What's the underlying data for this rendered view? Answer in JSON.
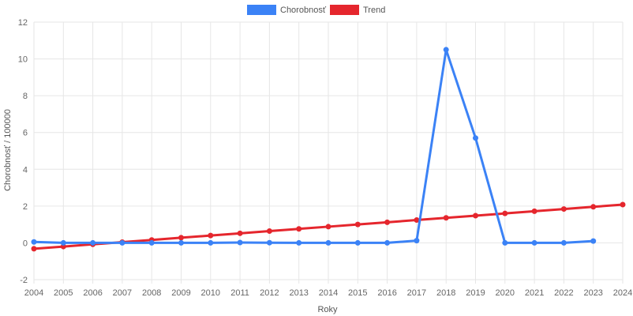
{
  "chart_data": {
    "type": "line",
    "xlabel": "Roky",
    "ylabel": "Chorobnosť / 100000",
    "ylim": [
      -2,
      12
    ],
    "yticks": [
      -2,
      0,
      2,
      4,
      6,
      8,
      10,
      12
    ],
    "categories": [
      "2004",
      "2005",
      "2006",
      "2007",
      "2008",
      "2009",
      "2010",
      "2011",
      "2012",
      "2013",
      "2014",
      "2015",
      "2016",
      "2017",
      "2018",
      "2019",
      "2020",
      "2021",
      "2022",
      "2023",
      "2024"
    ],
    "grid": true,
    "legend_position": "top",
    "series": [
      {
        "name": "Chorobnosť",
        "color": "#3b82f6",
        "values": [
          0.05,
          0.0,
          0.0,
          0.0,
          0.0,
          0.0,
          0.0,
          0.02,
          0.01,
          0.0,
          0.0,
          0.0,
          0.0,
          0.12,
          10.5,
          5.7,
          0.0,
          0.0,
          0.0,
          0.1,
          null
        ]
      },
      {
        "name": "Trend",
        "color": "#e5262d",
        "values": [
          -0.32,
          -0.2,
          -0.08,
          0.04,
          0.16,
          0.28,
          0.4,
          0.52,
          0.64,
          0.76,
          0.88,
          1.0,
          1.12,
          1.24,
          1.36,
          1.48,
          1.6,
          1.72,
          1.84,
          1.96,
          2.08
        ]
      }
    ]
  }
}
